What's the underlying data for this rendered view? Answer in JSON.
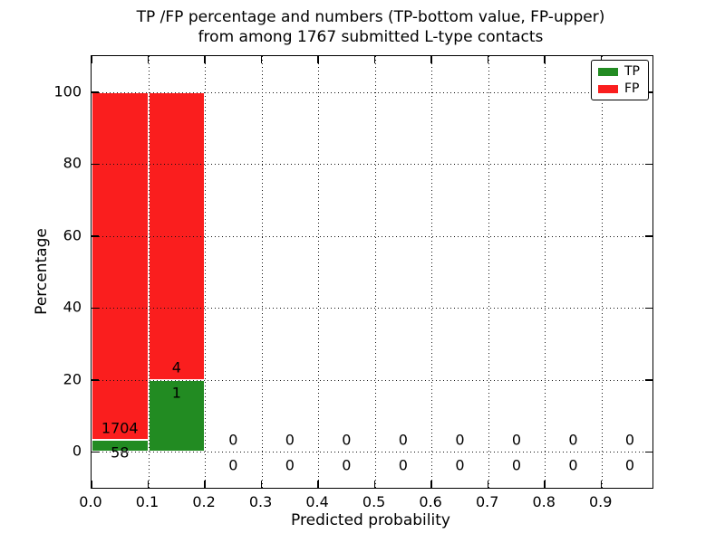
{
  "title": {
    "line1": "TP /FP percentage and numbers (TP-bottom value, FP-upper)",
    "line2": "from among 1767 submitted L-type contacts"
  },
  "axes": {
    "xlabel": "Predicted probability",
    "ylabel": "Percentage"
  },
  "legend": {
    "items": [
      {
        "label": "TP",
        "color": "#228b22"
      },
      {
        "label": "FP",
        "color": "#fa1e1e"
      }
    ]
  },
  "chart_data": {
    "type": "bar",
    "stacked": true,
    "title": "TP /FP percentage and numbers (TP-bottom value, FP-upper) from among 1767 submitted L-type contacts",
    "xlabel": "Predicted probability",
    "ylabel": "Percentage",
    "total_submitted_contacts": 1767,
    "bin_width": 0.1,
    "xlim": [
      0,
      0.99
    ],
    "ylim": [
      -10,
      110
    ],
    "grid": true,
    "legend_position": "upper right",
    "yticks": [
      0,
      20,
      40,
      60,
      80,
      100
    ],
    "xticks": [
      0.0,
      0.1,
      0.2,
      0.3,
      0.4,
      0.5,
      0.6,
      0.7,
      0.8,
      0.9
    ],
    "xtick_labels": [
      "0.0",
      "0.1",
      "0.2",
      "0.3",
      "0.4",
      "0.5",
      "0.6",
      "0.7",
      "0.8",
      "0.9"
    ],
    "series": [
      {
        "name": "TP",
        "color": "#228b22"
      },
      {
        "name": "FP",
        "color": "#fa1e1e"
      }
    ],
    "bins": [
      {
        "range": [
          0.0,
          0.1
        ],
        "tp_count": 58,
        "fp_count": 1704,
        "tp_pct": 3.29,
        "fp_pct": 96.71
      },
      {
        "range": [
          0.1,
          0.2
        ],
        "tp_count": 1,
        "fp_count": 4,
        "tp_pct": 20,
        "fp_pct": 80
      },
      {
        "range": [
          0.2,
          0.3
        ],
        "tp_count": 0,
        "fp_count": 0,
        "tp_pct": 0,
        "fp_pct": 0
      },
      {
        "range": [
          0.3,
          0.4
        ],
        "tp_count": 0,
        "fp_count": 0,
        "tp_pct": 0,
        "fp_pct": 0
      },
      {
        "range": [
          0.4,
          0.5
        ],
        "tp_count": 0,
        "fp_count": 0,
        "tp_pct": 0,
        "fp_pct": 0
      },
      {
        "range": [
          0.5,
          0.6
        ],
        "tp_count": 0,
        "fp_count": 0,
        "tp_pct": 0,
        "fp_pct": 0
      },
      {
        "range": [
          0.6,
          0.7
        ],
        "tp_count": 0,
        "fp_count": 0,
        "tp_pct": 0,
        "fp_pct": 0
      },
      {
        "range": [
          0.7,
          0.8
        ],
        "tp_count": 0,
        "fp_count": 0,
        "tp_pct": 0,
        "fp_pct": 0
      },
      {
        "range": [
          0.8,
          0.9
        ],
        "tp_count": 0,
        "fp_count": 0,
        "tp_pct": 0,
        "fp_pct": 0
      },
      {
        "range": [
          0.9,
          1.0
        ],
        "tp_count": 0,
        "fp_count": 0,
        "tp_pct": 0,
        "fp_pct": 0
      }
    ]
  }
}
